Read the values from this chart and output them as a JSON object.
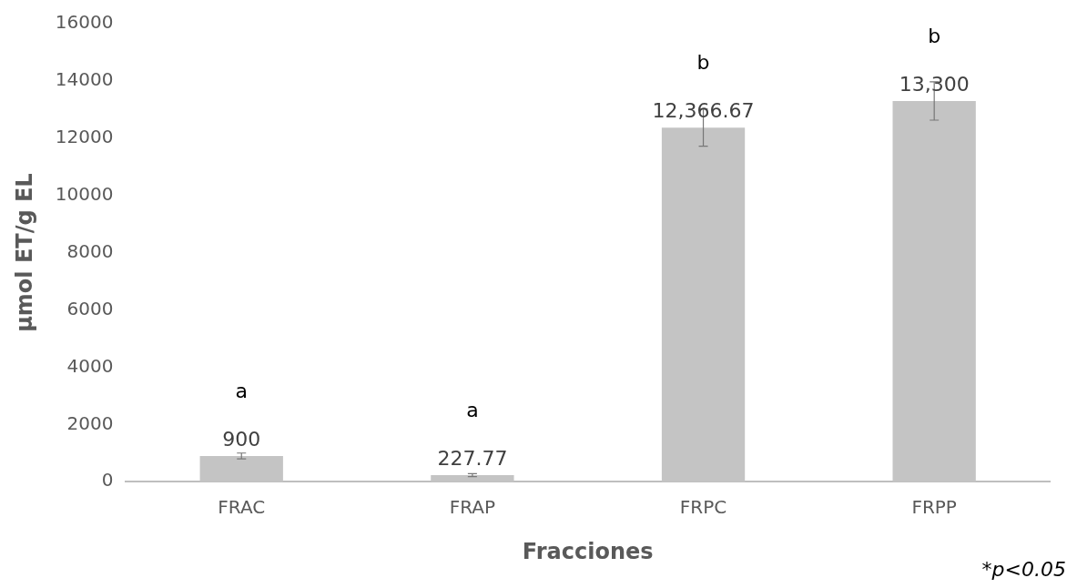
{
  "chart_data": {
    "type": "bar",
    "xlabel": "Fracciones",
    "ylabel": "µmol ET/g EL",
    "categories": [
      "FRAC",
      "FRAP",
      "FRPC",
      "FRPP"
    ],
    "values": [
      900,
      227.77,
      12366.67,
      13300
    ],
    "errors": [
      100,
      50,
      650,
      670
    ],
    "color": "#c4c4c4",
    "value_labels": [
      "900",
      "227.77",
      "12,366.67",
      "13,300"
    ],
    "ylim": [
      0,
      16000
    ],
    "yticks": [
      0,
      2000,
      4000,
      6000,
      8000,
      10000,
      12000,
      14000,
      16000
    ],
    "grid": false,
    "legend": false,
    "annotations": [
      "a",
      "a",
      "b",
      "b",
      "*p<0.05"
    ]
  }
}
